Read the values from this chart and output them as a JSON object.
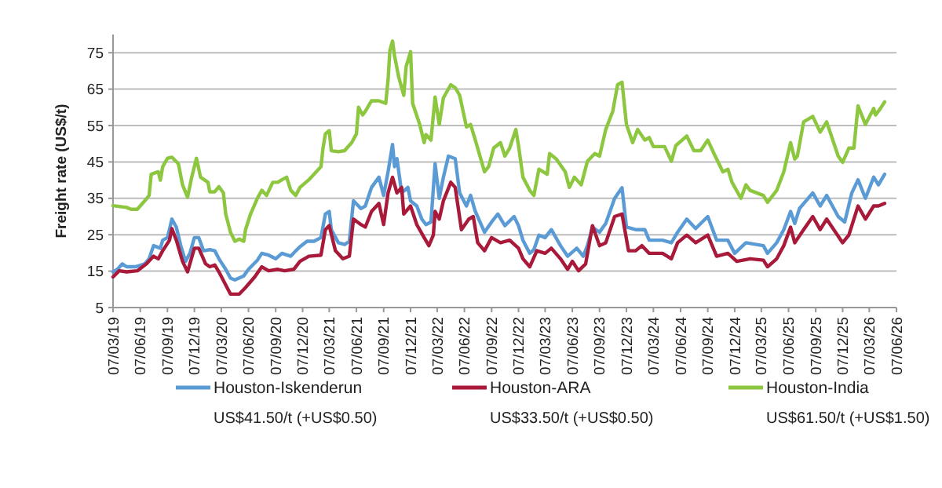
{
  "chart_data": {
    "type": "line",
    "ylabel": "Freight rate (US$/t)",
    "ylim": [
      5,
      80
    ],
    "yticks": [
      5,
      15,
      25,
      35,
      45,
      55,
      65,
      75
    ],
    "xlim": [
      "2019-03-07",
      "2026-06-07"
    ],
    "xticks": [
      {
        "value": "2019-03-07",
        "label": "07/03/19"
      },
      {
        "value": "2019-06-07",
        "label": "07/06/19"
      },
      {
        "value": "2019-09-07",
        "label": "07/09/19"
      },
      {
        "value": "2019-12-07",
        "label": "07/12/19"
      },
      {
        "value": "2020-03-07",
        "label": "07/03/20"
      },
      {
        "value": "2020-06-07",
        "label": "07/06/20"
      },
      {
        "value": "2020-09-07",
        "label": "07/09/20"
      },
      {
        "value": "2020-12-07",
        "label": "07/12/20"
      },
      {
        "value": "2021-03-07",
        "label": "07/03/21"
      },
      {
        "value": "2021-06-07",
        "label": "07/06/21"
      },
      {
        "value": "2021-09-07",
        "label": "07/09/21"
      },
      {
        "value": "2021-12-07",
        "label": "07/12/21"
      },
      {
        "value": "2022-03-07",
        "label": "07/03/22"
      },
      {
        "value": "2022-06-07",
        "label": "07/06/22"
      },
      {
        "value": "2022-09-07",
        "label": "07/09/22"
      },
      {
        "value": "2022-12-07",
        "label": "07/12/22"
      },
      {
        "value": "2023-03-07",
        "label": "07/03/23"
      },
      {
        "value": "2023-06-07",
        "label": "07/06/23"
      },
      {
        "value": "2023-09-07",
        "label": "07/09/23"
      },
      {
        "value": "2023-12-07",
        "label": "07/12/23"
      },
      {
        "value": "2024-03-07",
        "label": "07/03/24"
      },
      {
        "value": "2024-06-07",
        "label": "07/06/24"
      },
      {
        "value": "2024-09-07",
        "label": "07/09/24"
      },
      {
        "value": "2024-12-07",
        "label": "07/12/24"
      },
      {
        "value": "2025-03-07",
        "label": "07/03/25"
      },
      {
        "value": "2025-06-07",
        "label": "07/06/25"
      },
      {
        "value": "2025-09-07",
        "label": "07/09/25"
      },
      {
        "value": "2025-12-07",
        "label": "07/12/25"
      },
      {
        "value": "2026-03-07",
        "label": "07/03/26"
      },
      {
        "value": "2026-06-07",
        "label": "07/06/26"
      }
    ],
    "grid": "y",
    "legend": "bottom",
    "marker": "none",
    "line_style": "solid",
    "annotations": [
      "US$41.50/t (+US$0.50)",
      "US$33.50/t (+US$0.50)",
      "US$61.50/t (+US$1.50)"
    ],
    "series": [
      {
        "name": "Houston-Iskenderun",
        "color": "#5b9bd5",
        "x": [
          "2019-03-07",
          "2019-03-22",
          "2019-04-07",
          "2019-04-22",
          "2019-05-22",
          "2019-06-22",
          "2019-07-07",
          "2019-07-22",
          "2019-08-14",
          "2019-08-22",
          "2019-09-07",
          "2019-09-22",
          "2019-10-07",
          "2019-10-22",
          "2019-11-07",
          "2019-11-22",
          "2019-12-07",
          "2019-12-22",
          "2020-01-07",
          "2020-01-28",
          "2020-02-14",
          "2020-02-28",
          "2020-03-22",
          "2020-04-07",
          "2020-04-22",
          "2020-05-22",
          "2020-06-07",
          "2020-07-07",
          "2020-07-22",
          "2020-08-14",
          "2020-09-07",
          "2020-09-28",
          "2020-10-28",
          "2020-11-14",
          "2020-11-28",
          "2020-12-22",
          "2021-01-14",
          "2021-02-07",
          "2021-02-22",
          "2021-03-07",
          "2021-03-14",
          "2021-04-07",
          "2021-04-28",
          "2021-05-14",
          "2021-05-28",
          "2021-06-22",
          "2021-07-07",
          "2021-07-28",
          "2021-08-22",
          "2021-09-07",
          "2021-09-22",
          "2021-10-07",
          "2021-10-14",
          "2021-10-22",
          "2021-11-07",
          "2021-11-28",
          "2021-12-07",
          "2021-12-28",
          "2022-01-14",
          "2022-01-28",
          "2022-02-14",
          "2022-02-28",
          "2022-03-14",
          "2022-03-28",
          "2022-04-14",
          "2022-05-07",
          "2022-05-22",
          "2022-06-14",
          "2022-06-28",
          "2022-07-14",
          "2022-08-14",
          "2022-09-07",
          "2022-09-28",
          "2022-10-22",
          "2022-11-22",
          "2022-12-07",
          "2022-12-22",
          "2023-01-14",
          "2023-01-28",
          "2023-02-14",
          "2023-03-07",
          "2023-03-28",
          "2023-04-28",
          "2023-05-22",
          "2023-06-22",
          "2023-07-14",
          "2023-07-28",
          "2023-08-14",
          "2023-09-07",
          "2023-09-28",
          "2023-10-28",
          "2023-11-22",
          "2023-12-07",
          "2024-01-07",
          "2024-02-07",
          "2024-02-22",
          "2024-04-07",
          "2024-05-07",
          "2024-05-28",
          "2024-06-28",
          "2024-07-28",
          "2024-09-07",
          "2024-10-07",
          "2024-11-14",
          "2024-12-07",
          "2025-01-14",
          "2025-03-14",
          "2025-03-28",
          "2025-04-28",
          "2025-05-22",
          "2025-06-14",
          "2025-06-28",
          "2025-07-14",
          "2025-08-28",
          "2025-09-22",
          "2025-10-14",
          "2025-11-22",
          "2025-12-14",
          "2026-01-07",
          "2026-01-28",
          "2026-02-22",
          "2026-03-22",
          "2026-04-07",
          "2026-04-28"
        ],
        "values": [
          14.8,
          15.5,
          17,
          16.2,
          16.2,
          17,
          18.4,
          22,
          21.3,
          23.5,
          24.2,
          29.3,
          27.1,
          22,
          17.7,
          19.9,
          24.2,
          24.2,
          20.6,
          20.9,
          20.6,
          18.4,
          15.5,
          13.1,
          12.6,
          13.7,
          15.5,
          18,
          19.9,
          19.4,
          18.4,
          19.9,
          19.1,
          20.6,
          21.7,
          23.2,
          23.2,
          24.2,
          30.7,
          31.4,
          26.4,
          22.8,
          22.3,
          23.2,
          34.3,
          32.2,
          32.9,
          38,
          40.8,
          35.8,
          42.3,
          49.8,
          43.7,
          45.9,
          36.5,
          38,
          34.3,
          32.9,
          29.3,
          27.8,
          28.5,
          44.5,
          35,
          40.8,
          46.6,
          45.9,
          36.5,
          32.9,
          35.8,
          31.4,
          25.7,
          28.5,
          30.7,
          27.5,
          30,
          27.5,
          23.5,
          19.9,
          20.9,
          24.9,
          24.2,
          26.4,
          22,
          19.1,
          21.3,
          19.1,
          22,
          27.1,
          25.7,
          28.1,
          35,
          37.9,
          27.1,
          26.4,
          26.4,
          23.5,
          23.5,
          22.8,
          25.7,
          29.3,
          26.7,
          30,
          23.5,
          23.5,
          19.9,
          22.8,
          22,
          19.9,
          22.8,
          26.4,
          31.4,
          28.1,
          32.2,
          36.5,
          32.9,
          35.8,
          30,
          28.5,
          36.5,
          40.1,
          35,
          40.8,
          38.7,
          41.6
        ]
      },
      {
        "name": "Houston-ARA",
        "color": "#a8193a",
        "x": [
          "2019-03-07",
          "2019-03-28",
          "2019-04-22",
          "2019-05-28",
          "2019-06-28",
          "2019-07-22",
          "2019-08-07",
          "2019-08-22",
          "2019-09-14",
          "2019-09-22",
          "2019-10-07",
          "2019-10-28",
          "2019-11-14",
          "2019-12-07",
          "2019-12-22",
          "2020-01-14",
          "2020-01-28",
          "2020-02-14",
          "2020-02-28",
          "2020-03-22",
          "2020-04-07",
          "2020-05-07",
          "2020-05-28",
          "2020-06-28",
          "2020-07-22",
          "2020-08-14",
          "2020-09-14",
          "2020-10-07",
          "2020-11-07",
          "2020-11-28",
          "2020-12-28",
          "2021-02-07",
          "2021-02-22",
          "2021-03-07",
          "2021-03-28",
          "2021-04-22",
          "2021-05-14",
          "2021-05-28",
          "2021-06-22",
          "2021-07-07",
          "2021-07-28",
          "2021-08-22",
          "2021-09-07",
          "2021-09-22",
          "2021-10-07",
          "2021-10-22",
          "2021-11-07",
          "2021-11-14",
          "2021-12-07",
          "2021-12-28",
          "2022-01-22",
          "2022-02-07",
          "2022-02-22",
          "2022-02-28",
          "2022-03-14",
          "2022-03-28",
          "2022-04-22",
          "2022-05-07",
          "2022-05-28",
          "2022-06-22",
          "2022-07-07",
          "2022-07-22",
          "2022-08-14",
          "2022-09-07",
          "2022-10-07",
          "2022-11-07",
          "2022-12-07",
          "2022-12-22",
          "2023-01-14",
          "2023-02-07",
          "2023-03-07",
          "2023-03-28",
          "2023-04-28",
          "2023-05-22",
          "2023-06-07",
          "2023-06-28",
          "2023-07-22",
          "2023-08-14",
          "2023-09-07",
          "2023-09-28",
          "2023-10-28",
          "2023-11-22",
          "2023-12-14",
          "2024-01-07",
          "2024-01-28",
          "2024-02-22",
          "2024-04-07",
          "2024-05-07",
          "2024-05-28",
          "2024-06-28",
          "2024-07-28",
          "2024-09-07",
          "2024-10-07",
          "2024-11-14",
          "2024-12-14",
          "2025-01-28",
          "2025-03-14",
          "2025-03-28",
          "2025-04-28",
          "2025-05-22",
          "2025-06-14",
          "2025-06-28",
          "2025-07-28",
          "2025-08-28",
          "2025-09-22",
          "2025-10-14",
          "2025-12-07",
          "2025-12-28",
          "2026-01-28",
          "2026-02-22",
          "2026-03-22",
          "2026-04-07",
          "2026-04-28"
        ],
        "values": [
          13.4,
          15.1,
          14.8,
          15.1,
          17,
          19.1,
          18.4,
          20.6,
          23.5,
          26.7,
          23.5,
          17.7,
          14.8,
          21.3,
          21.3,
          17,
          16.2,
          16.7,
          14.8,
          11.2,
          8.7,
          8.7,
          10.5,
          13.4,
          16.2,
          15.1,
          15.5,
          15.1,
          15.5,
          17.7,
          19.1,
          19.4,
          26.4,
          27.5,
          20.6,
          18.4,
          19.1,
          29.3,
          27.8,
          27.1,
          31.4,
          33.6,
          27.8,
          36.5,
          40.8,
          36.5,
          38,
          30.7,
          32.9,
          27.8,
          24.2,
          22,
          24.9,
          31.4,
          29.3,
          34.3,
          39.4,
          38,
          26.4,
          29.3,
          30,
          22.8,
          20.6,
          24.2,
          22.8,
          23.5,
          21.3,
          18.4,
          16.2,
          20.6,
          19.9,
          21.3,
          18.4,
          15.5,
          17.7,
          15.1,
          17,
          27.5,
          22,
          22.8,
          30,
          30.7,
          20.6,
          20.6,
          22,
          19.9,
          19.9,
          18.4,
          22.8,
          24.9,
          22.8,
          24.9,
          19.1,
          19.9,
          17.7,
          18.4,
          18,
          16.2,
          18.4,
          22,
          27.1,
          22.8,
          26.4,
          30,
          26.4,
          29.3,
          22.8,
          24.9,
          32.9,
          29.3,
          32.9,
          32.9,
          33.6
        ]
      },
      {
        "name": "Houston-India",
        "color": "#8dc63f",
        "x": [
          "2019-03-07",
          "2019-04-22",
          "2019-05-07",
          "2019-05-28",
          "2019-06-22",
          "2019-07-07",
          "2019-07-14",
          "2019-08-07",
          "2019-08-14",
          "2019-08-22",
          "2019-09-07",
          "2019-09-22",
          "2019-10-14",
          "2019-10-28",
          "2019-11-14",
          "2019-11-28",
          "2019-12-14",
          "2019-12-28",
          "2020-01-22",
          "2020-01-28",
          "2020-02-14",
          "2020-02-28",
          "2020-03-14",
          "2020-03-22",
          "2020-04-07",
          "2020-04-22",
          "2020-05-07",
          "2020-05-22",
          "2020-05-28",
          "2020-06-14",
          "2020-07-07",
          "2020-07-22",
          "2020-08-07",
          "2020-08-28",
          "2020-09-14",
          "2020-09-28",
          "2020-10-14",
          "2020-10-28",
          "2020-11-14",
          "2020-11-28",
          "2020-12-28",
          "2021-01-22",
          "2021-02-07",
          "2021-02-14",
          "2021-02-22",
          "2021-03-07",
          "2021-03-14",
          "2021-04-07",
          "2021-04-28",
          "2021-05-22",
          "2021-06-07",
          "2021-06-14",
          "2021-06-28",
          "2021-07-07",
          "2021-07-28",
          "2021-08-22",
          "2021-09-14",
          "2021-09-22",
          "2021-09-28",
          "2021-10-07",
          "2021-10-14",
          "2021-10-28",
          "2021-11-14",
          "2021-11-22",
          "2021-12-07",
          "2021-12-14",
          "2022-01-07",
          "2022-01-22",
          "2022-01-28",
          "2022-02-14",
          "2022-02-28",
          "2022-03-14",
          "2022-03-28",
          "2022-04-22",
          "2022-05-07",
          "2022-05-22",
          "2022-06-14",
          "2022-06-28",
          "2022-07-14",
          "2022-08-14",
          "2022-08-28",
          "2022-09-14",
          "2022-10-07",
          "2022-10-22",
          "2022-11-07",
          "2022-11-28",
          "2022-12-07",
          "2022-12-22",
          "2023-01-14",
          "2023-01-28",
          "2023-02-14",
          "2023-03-14",
          "2023-03-22",
          "2023-04-14",
          "2023-05-14",
          "2023-05-28",
          "2023-06-14",
          "2023-07-07",
          "2023-07-28",
          "2023-08-22",
          "2023-09-07",
          "2023-09-28",
          "2023-10-22",
          "2023-11-07",
          "2023-11-22",
          "2023-12-07",
          "2023-12-28",
          "2024-01-14",
          "2024-02-07",
          "2024-02-22",
          "2024-03-07",
          "2024-04-14",
          "2024-05-07",
          "2024-05-22",
          "2024-06-28",
          "2024-07-22",
          "2024-08-14",
          "2024-09-07",
          "2024-09-28",
          "2024-10-28",
          "2024-11-14",
          "2024-11-28",
          "2024-12-28",
          "2025-01-14",
          "2025-01-28",
          "2025-03-14",
          "2025-03-28",
          "2025-04-28",
          "2025-05-22",
          "2025-06-14",
          "2025-06-28",
          "2025-07-07",
          "2025-07-28",
          "2025-08-28",
          "2025-09-22",
          "2025-10-14",
          "2025-11-22",
          "2025-12-07",
          "2025-12-28",
          "2026-01-14",
          "2026-01-28",
          "2026-02-22",
          "2026-03-22",
          "2026-03-28",
          "2026-04-14",
          "2026-04-28"
        ],
        "values": [
          33,
          32.5,
          32,
          32,
          34.3,
          35.8,
          41.6,
          42.3,
          40,
          43.7,
          46,
          46.3,
          44.5,
          38.7,
          35.3,
          40.8,
          46,
          40.8,
          39.4,
          36.8,
          36.8,
          38.2,
          36.5,
          30.7,
          25.7,
          23.2,
          23.8,
          23.2,
          26.4,
          30.7,
          35,
          37.2,
          35.8,
          39.4,
          39.4,
          40.1,
          40.8,
          37.2,
          35.8,
          38,
          40.1,
          42.3,
          43.7,
          48.8,
          52.7,
          53.6,
          48.1,
          47.8,
          48.1,
          50.3,
          52.7,
          60,
          57.9,
          58.9,
          61.8,
          61.8,
          61.1,
          67.6,
          75.6,
          78.2,
          74.1,
          68.3,
          63.3,
          71.2,
          75.3,
          61.1,
          55.3,
          50.3,
          52.5,
          51,
          62.8,
          55.3,
          62.6,
          66.2,
          65.4,
          63.3,
          54.6,
          55.3,
          51,
          42.3,
          43.7,
          48.8,
          50.3,
          46.6,
          48.8,
          53.9,
          49.5,
          40.8,
          37.2,
          35.8,
          43,
          41.6,
          47.3,
          45.8,
          42.3,
          38,
          40.8,
          38.7,
          45.2,
          47.3,
          46.6,
          53.9,
          59,
          66.2,
          66.9,
          55.3,
          50.3,
          53.9,
          51,
          51.7,
          49.2,
          49.2,
          45.2,
          49.5,
          52.1,
          48.1,
          48.1,
          51,
          47.3,
          42.3,
          43,
          39.4,
          35,
          38.7,
          37.2,
          35.8,
          33.9,
          37.2,
          42.3,
          50.3,
          45.8,
          46.6,
          56,
          57.5,
          53.2,
          56,
          46.6,
          44.9,
          48.8,
          48.8,
          60.4,
          55.3,
          59.7,
          57.9,
          59.7,
          61.5
        ]
      }
    ]
  }
}
